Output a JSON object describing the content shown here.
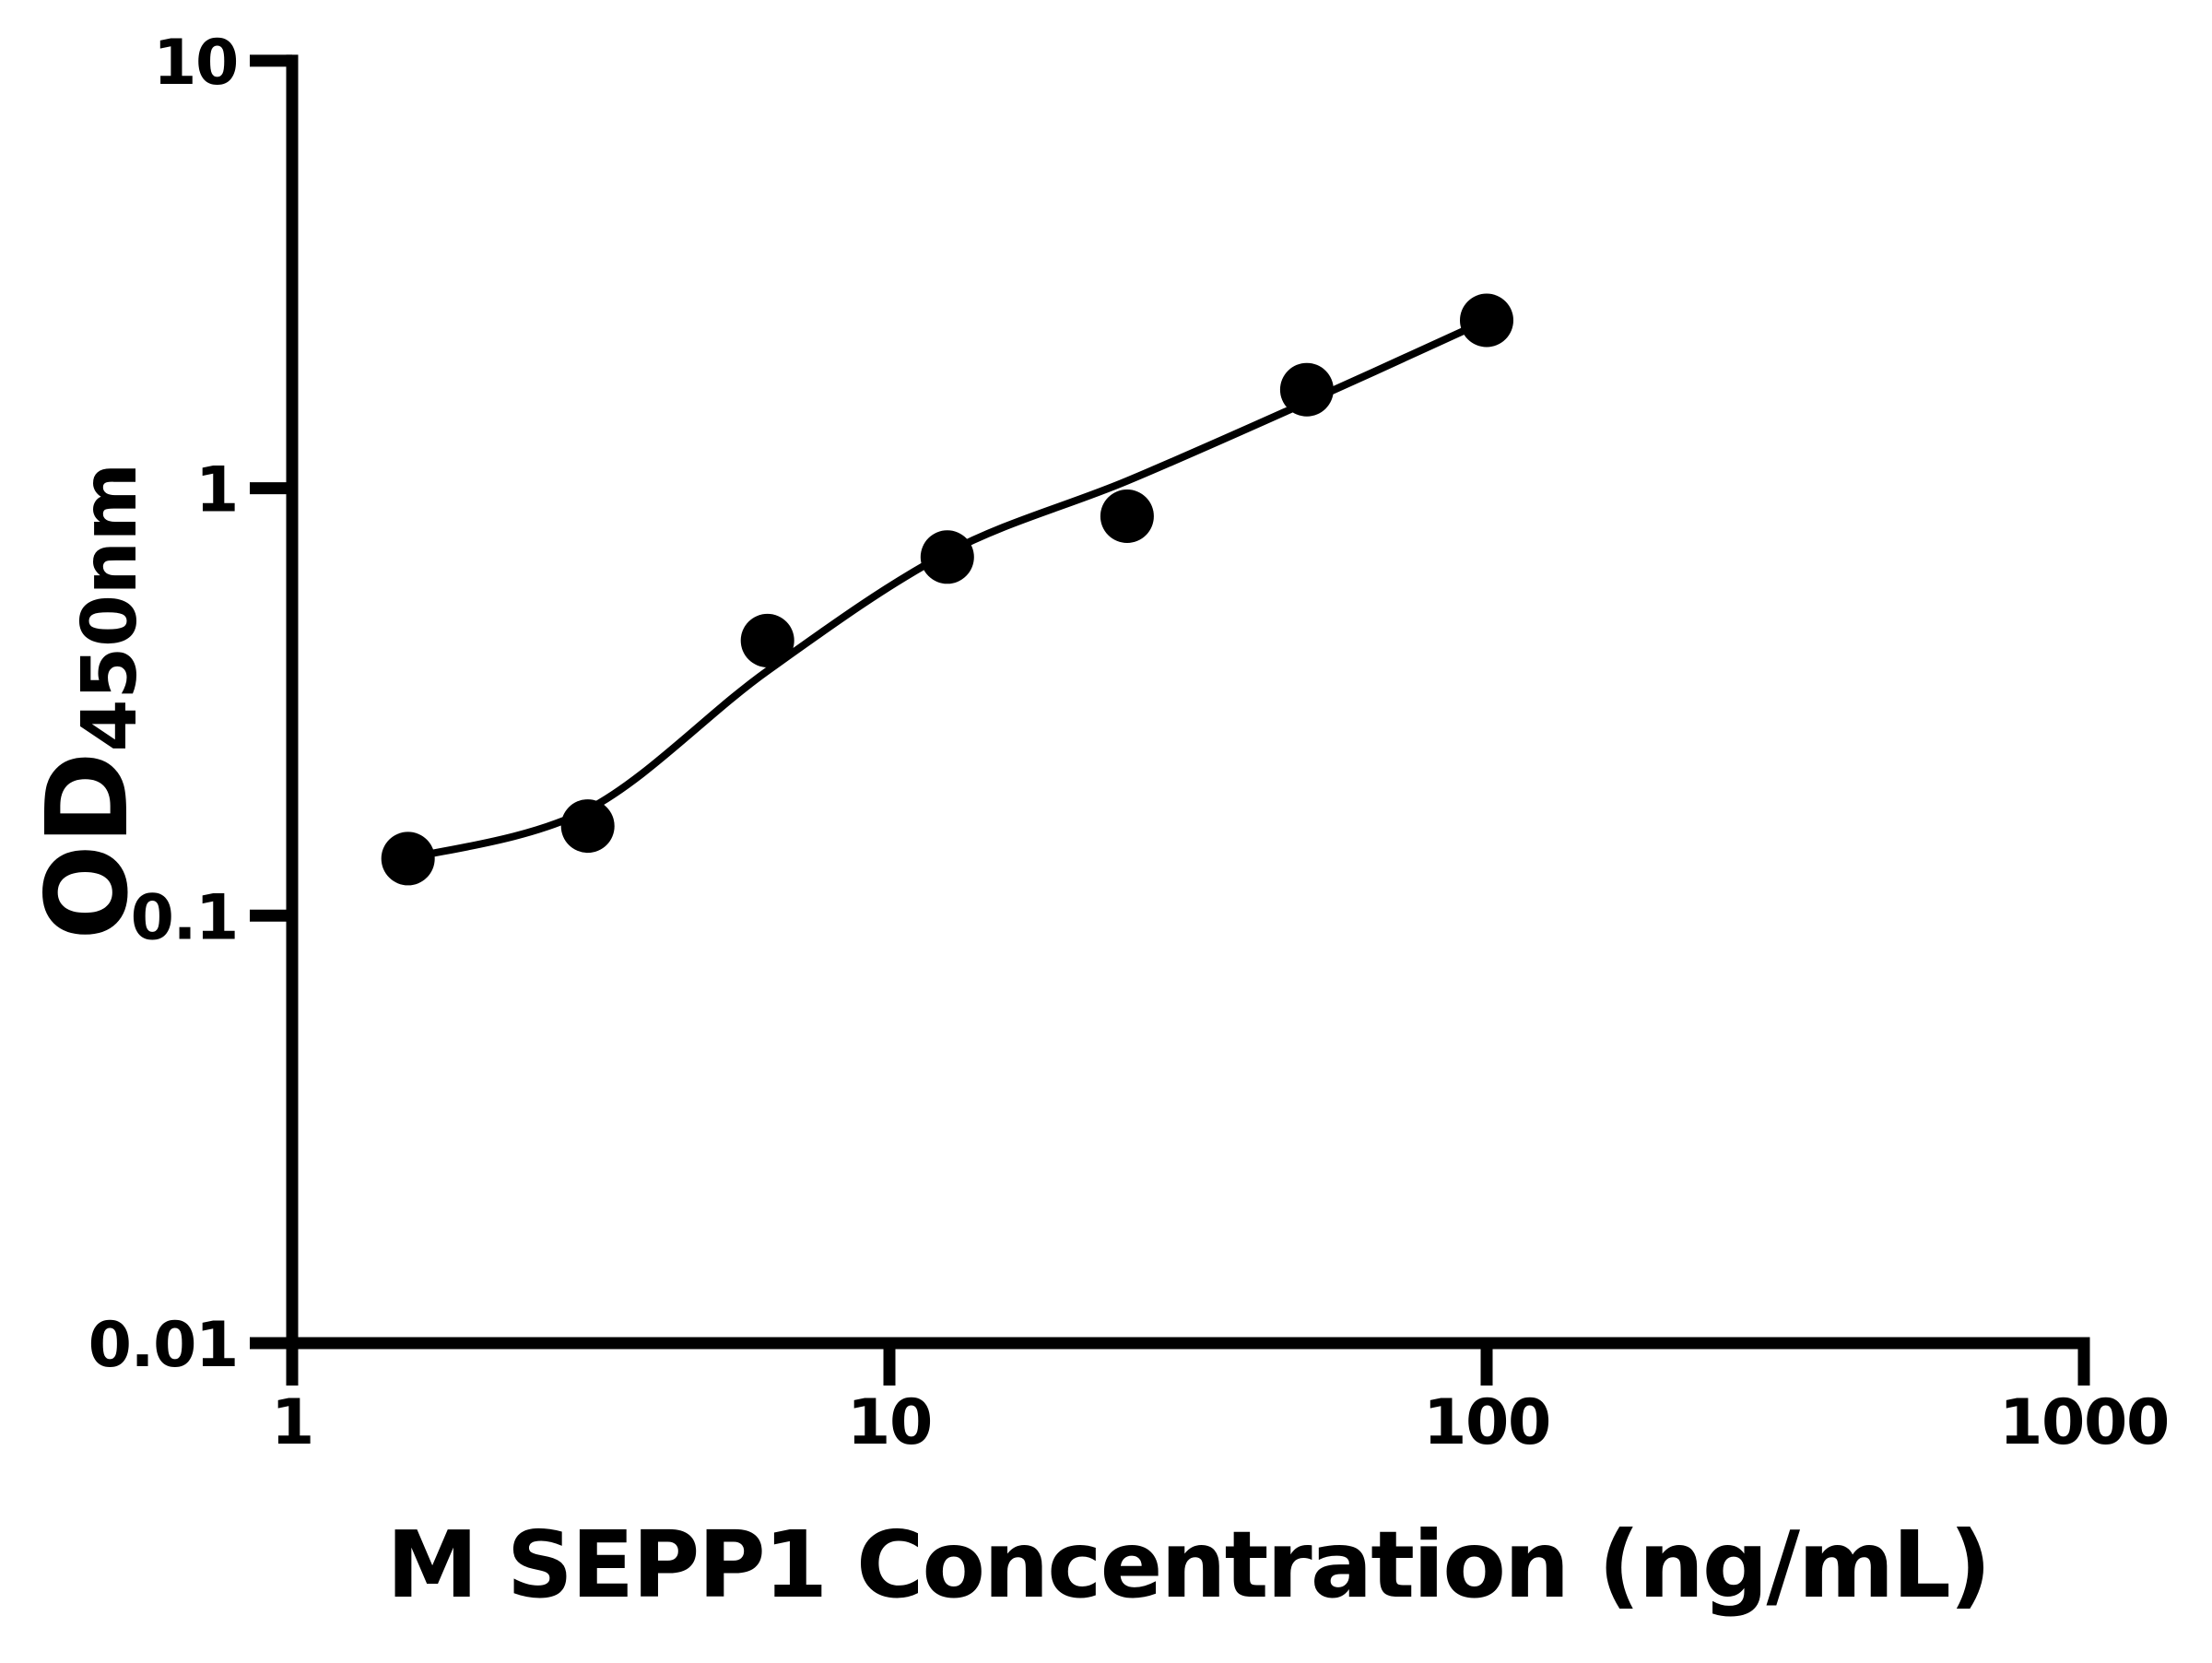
{
  "chart_data": {
    "type": "scatter",
    "title": "",
    "xlabel": "M SEPP1 Concentration (ng/mL)",
    "ylabel_main": "OD",
    "ylabel_sub": "450nm",
    "x_scale": "log",
    "y_scale": "log",
    "xlim": [
      1,
      1000
    ],
    "ylim": [
      0.01,
      10
    ],
    "x_ticks": [
      1,
      10,
      100,
      1000
    ],
    "x_tick_labels": [
      "1",
      "10",
      "100",
      "1000"
    ],
    "y_ticks": [
      0.01,
      0.1,
      1,
      10
    ],
    "y_tick_labels": [
      "0.01",
      "0.1",
      "1",
      "10"
    ],
    "grid": false,
    "legend": "none",
    "background_color": "#ffffff",
    "axis_color": "#000000",
    "marker_color": "#000000",
    "line_color": "#000000",
    "series": [
      {
        "name": "standards",
        "x": [
          1.563,
          3.125,
          6.25,
          12.5,
          25,
          50,
          100
        ],
        "y": [
          0.136,
          0.162,
          0.44,
          0.69,
          0.86,
          1.7,
          2.47
        ]
      }
    ],
    "fit_line": {
      "name": "standard-curve-fit",
      "x": [
        1.563,
        3.125,
        6.25,
        12.5,
        25,
        50,
        100
      ],
      "y": [
        0.136,
        0.177,
        0.374,
        0.706,
        1.04,
        1.59,
        2.47
      ]
    }
  }
}
